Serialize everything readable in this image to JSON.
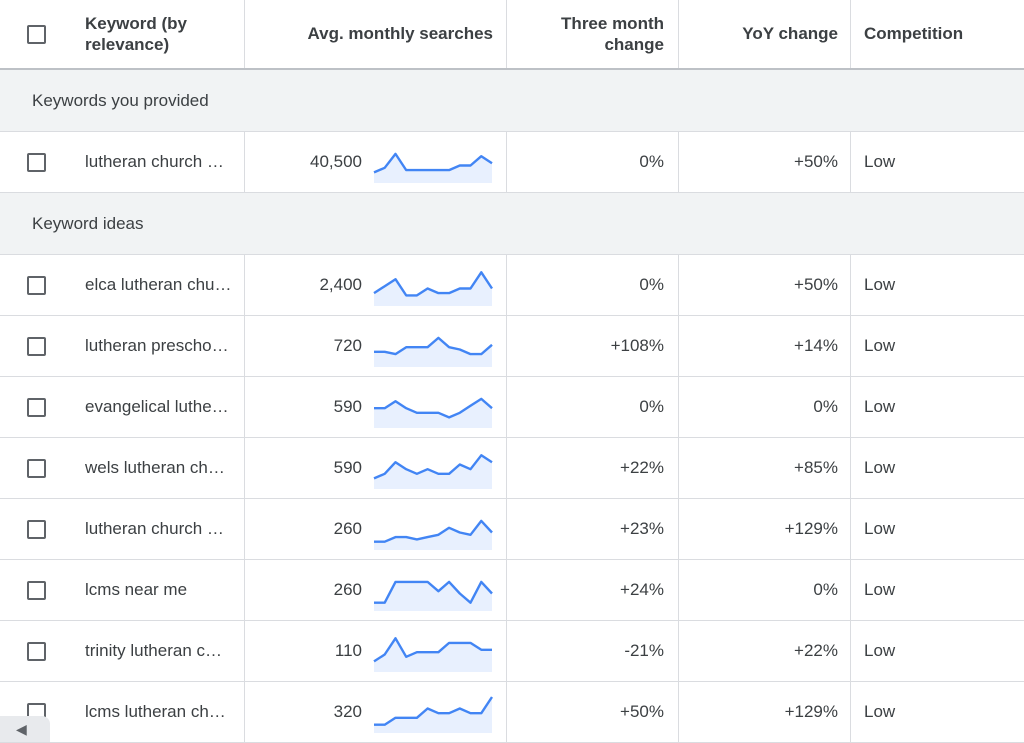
{
  "header": {
    "keyword_label": "Keyword (by relevance)",
    "avg_label": "Avg. monthly searches",
    "three_month_label": "Three month change",
    "yoy_label": "YoY change",
    "competition_label": "Competition"
  },
  "sections": {
    "provided_label": "Keywords you provided",
    "ideas_label": "Keyword ideas"
  },
  "provided": [
    {
      "keyword": "lutheran church …",
      "avg": "40,500",
      "three_month": "0%",
      "yoy": "+50%",
      "competition": "Low",
      "trend": [
        2,
        4,
        10,
        3,
        3,
        3,
        3,
        3,
        5,
        5,
        9,
        6
      ]
    }
  ],
  "ideas": [
    {
      "keyword": "elca lutheran chu…",
      "avg": "2,400",
      "three_month": "0%",
      "yoy": "+50%",
      "competition": "Low",
      "trend": [
        3,
        6,
        9,
        2,
        2,
        5,
        3,
        3,
        5,
        5,
        12,
        5
      ]
    },
    {
      "keyword": "lutheran prescho…",
      "avg": "720",
      "three_month": "+108%",
      "yoy": "+14%",
      "competition": "Low",
      "trend": [
        4,
        4,
        3,
        6,
        6,
        6,
        10,
        6,
        5,
        3,
        3,
        7
      ]
    },
    {
      "keyword": "evangelical luthe…",
      "avg": "590",
      "three_month": "0%",
      "yoy": "0%",
      "competition": "Low",
      "trend": [
        6,
        6,
        9,
        6,
        4,
        4,
        4,
        2,
        4,
        7,
        10,
        6
      ]
    },
    {
      "keyword": "wels lutheran ch…",
      "avg": "590",
      "three_month": "+22%",
      "yoy": "+85%",
      "competition": "Low",
      "trend": [
        2,
        4,
        9,
        6,
        4,
        6,
        4,
        4,
        8,
        6,
        12,
        9
      ]
    },
    {
      "keyword": "lutheran church …",
      "avg": "260",
      "three_month": "+23%",
      "yoy": "+129%",
      "competition": "Low",
      "trend": [
        1,
        1,
        3,
        3,
        2,
        3,
        4,
        7,
        5,
        4,
        10,
        5
      ]
    },
    {
      "keyword": "lcms near me",
      "avg": "260",
      "three_month": "+24%",
      "yoy": "0%",
      "competition": "Low",
      "trend": [
        1,
        1,
        10,
        10,
        10,
        10,
        6,
        10,
        5,
        1,
        10,
        5
      ]
    },
    {
      "keyword": "trinity lutheran c…",
      "avg": "110",
      "three_month": "-21%",
      "yoy": "+22%",
      "competition": "Low",
      "trend": [
        2,
        5,
        12,
        4,
        6,
        6,
        6,
        10,
        10,
        10,
        7,
        7
      ]
    },
    {
      "keyword": "lcms lutheran ch…",
      "avg": "320",
      "three_month": "+50%",
      "yoy": "+129%",
      "competition": "Low",
      "trend": [
        1,
        1,
        4,
        4,
        4,
        8,
        6,
        6,
        8,
        6,
        6,
        13
      ]
    }
  ],
  "colors": {
    "spark_line": "#4285f4",
    "spark_fill": "#e8f0fe",
    "section_bg": "#f1f3f4"
  },
  "icons": {
    "scroll_left": "chevron-left-icon"
  }
}
